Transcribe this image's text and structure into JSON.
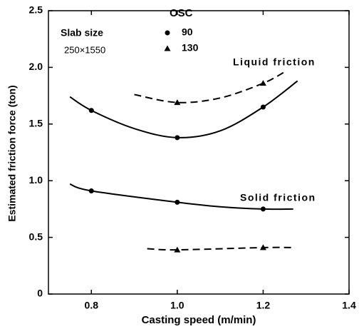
{
  "chart_data": {
    "type": "scatter",
    "x_label": "Casting speed (m/min)",
    "y_label": "Estimated friction force (ton)",
    "legend_title": "OSC",
    "legend": "upper left",
    "annotations": [
      "Slab size",
      "250×1550",
      "Liquid friction",
      "Solid friction"
    ],
    "xlim": [
      0.7,
      1.4
    ],
    "ylim": [
      0,
      2.5
    ],
    "xticks": [
      0.8,
      {
        "value": 1,
        "label": "1.0"
      },
      1.2,
      1.4
    ],
    "yticks": [
      0,
      0.5,
      {
        "value": 1,
        "label": "1.0"
      },
      1.5,
      {
        "value": 2,
        "label": "2.0"
      },
      2.5
    ],
    "color": "#000000",
    "series": [
      {
        "name": "90",
        "marker": "circle",
        "x": [
          0.8,
          1.0,
          1.2,
          0.8,
          1.0,
          1.2
        ],
        "values": [
          1.62,
          1.38,
          1.65,
          0.91,
          0.81,
          0.75
        ]
      },
      {
        "name": "130",
        "marker": "triangle",
        "x": [
          1.0,
          1.2,
          1.0,
          1.2
        ],
        "values": [
          1.69,
          1.86,
          0.39,
          0.41
        ]
      }
    ],
    "curves": [
      {
        "line": "solid",
        "x": [
          0.75,
          0.8,
          0.9,
          1.0,
          1.1,
          1.2,
          1.28
        ],
        "values": [
          1.74,
          1.62,
          1.46,
          1.38,
          1.44,
          1.65,
          1.88
        ]
      },
      {
        "line": "dashed",
        "x": [
          0.9,
          1.0,
          1.1,
          1.2,
          1.25
        ],
        "values": [
          1.76,
          1.69,
          1.73,
          1.86,
          1.96
        ]
      },
      {
        "line": "solid",
        "x": [
          0.75,
          0.8,
          1.0,
          1.1,
          1.2,
          1.27
        ],
        "values": [
          0.97,
          0.91,
          0.81,
          0.77,
          0.75,
          0.75
        ]
      },
      {
        "line": "dashed",
        "x": [
          0.93,
          1.0,
          1.2,
          1.27
        ],
        "values": [
          0.4,
          0.39,
          0.41,
          0.41
        ]
      }
    ]
  }
}
